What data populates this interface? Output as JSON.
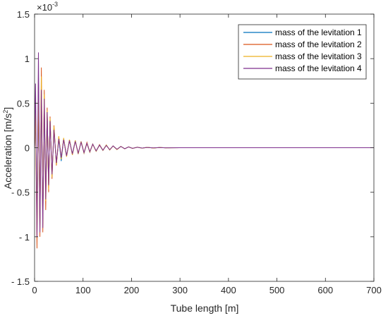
{
  "chart_data": {
    "type": "line",
    "title": "",
    "xlabel": "Tube length [m]",
    "ylabel": "Acceleration [m/s",
    "ylabel_sup": "2",
    "ylabel_end": "]",
    "y_exponent": "×10",
    "y_exponent_power": "-3",
    "xlim": [
      0,
      700
    ],
    "ylim": [
      -1.5,
      1.5
    ],
    "x_ticks": [
      0,
      100,
      200,
      300,
      400,
      500,
      600,
      700
    ],
    "x_tick_labels": [
      "0",
      "100",
      "200",
      "300",
      "400",
      "500",
      "600",
      "700"
    ],
    "y_ticks": [
      1.5,
      1,
      0.5,
      0,
      -0.5,
      -1,
      -1.5
    ],
    "y_tick_labels": [
      "1.5",
      "1",
      "0.5",
      "0",
      "- 0.5",
      "- 1",
      "- 1.5"
    ],
    "grid": false,
    "legend_position": "top-right",
    "series": [
      {
        "name": "mass of the levitation 1",
        "color": "#0072BD",
        "x": [
          0,
          2,
          5,
          8,
          11,
          14,
          17,
          20,
          23,
          26,
          29,
          32,
          36,
          40,
          45,
          50,
          55,
          60,
          66,
          72,
          78,
          84,
          90,
          96,
          102,
          108,
          114,
          120,
          127,
          134,
          141,
          148,
          155,
          162,
          170,
          178,
          186,
          194,
          202,
          212,
          222,
          232,
          245,
          258,
          270,
          300,
          350,
          400,
          500,
          600,
          700
        ],
        "y": [
          0,
          0.35,
          -0.75,
          0.6,
          -0.85,
          0.7,
          -0.8,
          0.5,
          -0.55,
          0.4,
          -0.45,
          0.32,
          -0.32,
          0.22,
          -0.18,
          0.1,
          -0.15,
          0.1,
          -0.09,
          0.08,
          -0.07,
          0.08,
          -0.07,
          0.07,
          -0.06,
          0.05,
          -0.05,
          0.04,
          -0.04,
          0.03,
          -0.03,
          0.03,
          -0.025,
          0.02,
          -0.02,
          0.015,
          -0.012,
          0.01,
          -0.008,
          0.006,
          -0.005,
          0.004,
          -0.003,
          0.002,
          -0.001,
          0.0005,
          0,
          0,
          0,
          0,
          0
        ]
      },
      {
        "name": "mass of the levitation 2",
        "color": "#D95319",
        "x": [
          0,
          2,
          5,
          8,
          11,
          14,
          17,
          20,
          23,
          26,
          29,
          32,
          36,
          40,
          45,
          50,
          55,
          60,
          66,
          72,
          78,
          84,
          90,
          96,
          102,
          108,
          114,
          120,
          127,
          134,
          141,
          148,
          155,
          162,
          170,
          178,
          186,
          194,
          202,
          212,
          222,
          232,
          245,
          258,
          270,
          300,
          350,
          400,
          500,
          600,
          700
        ],
        "y": [
          0,
          0.45,
          -1.13,
          0.8,
          -1.0,
          0.9,
          -0.95,
          0.65,
          -0.7,
          0.45,
          -0.5,
          0.35,
          -0.35,
          0.25,
          -0.2,
          0.12,
          -0.12,
          0.1,
          -0.1,
          0.09,
          -0.08,
          0.08,
          -0.07,
          0.07,
          -0.06,
          0.06,
          -0.05,
          0.04,
          -0.04,
          0.035,
          -0.03,
          0.03,
          -0.025,
          0.02,
          -0.02,
          0.015,
          -0.012,
          0.01,
          -0.008,
          0.006,
          -0.005,
          0.004,
          -0.003,
          0.002,
          -0.001,
          0.0005,
          0,
          0,
          0,
          0,
          0
        ]
      },
      {
        "name": "mass of the levitation 3",
        "color": "#EDB120",
        "x": [
          0,
          2,
          5,
          8,
          11,
          14,
          17,
          20,
          23,
          26,
          29,
          32,
          36,
          40,
          45,
          50,
          55,
          60,
          66,
          72,
          78,
          84,
          90,
          96,
          102,
          108,
          114,
          120,
          127,
          134,
          141,
          148,
          155,
          162,
          170,
          178,
          186,
          194,
          202,
          212,
          222,
          232,
          245,
          258,
          270,
          300,
          350,
          400,
          500,
          600,
          700
        ],
        "y": [
          0,
          0.4,
          -0.9,
          0.7,
          -0.9,
          0.8,
          -0.85,
          0.6,
          -0.6,
          0.42,
          -0.47,
          0.33,
          -0.33,
          0.24,
          -0.19,
          0.13,
          -0.13,
          0.11,
          -0.1,
          0.09,
          -0.08,
          0.08,
          -0.07,
          0.07,
          -0.06,
          0.05,
          -0.05,
          0.04,
          -0.04,
          0.03,
          -0.03,
          0.03,
          -0.025,
          0.02,
          -0.02,
          0.015,
          -0.012,
          0.01,
          -0.008,
          0.006,
          -0.005,
          0.004,
          -0.003,
          0.002,
          -0.001,
          0.0005,
          0,
          0,
          0,
          0,
          0
        ]
      },
      {
        "name": "mass of the levitation 4",
        "color": "#7E2F8E",
        "x": [
          0,
          2,
          5,
          8,
          11,
          14,
          17,
          20,
          23,
          26,
          29,
          32,
          36,
          40,
          45,
          50,
          55,
          60,
          66,
          72,
          78,
          84,
          90,
          96,
          102,
          108,
          114,
          120,
          127,
          134,
          141,
          148,
          155,
          162,
          170,
          178,
          186,
          194,
          202,
          212,
          222,
          232,
          245,
          258,
          270,
          300,
          350,
          400,
          500,
          600,
          700
        ],
        "y": [
          0,
          0.72,
          -1.0,
          1.07,
          -0.95,
          0.65,
          -0.9,
          0.55,
          -0.58,
          0.4,
          -0.42,
          0.3,
          -0.3,
          0.2,
          -0.17,
          0.1,
          -0.11,
          0.09,
          -0.09,
          0.08,
          -0.07,
          0.07,
          -0.06,
          0.06,
          -0.055,
          0.05,
          -0.045,
          0.04,
          -0.035,
          0.03,
          -0.028,
          0.025,
          -0.022,
          0.02,
          -0.017,
          0.014,
          -0.011,
          0.009,
          -0.007,
          0.005,
          -0.004,
          0.003,
          -0.002,
          0.0015,
          -0.001,
          0.0004,
          0,
          0,
          0,
          0,
          0
        ]
      }
    ]
  }
}
